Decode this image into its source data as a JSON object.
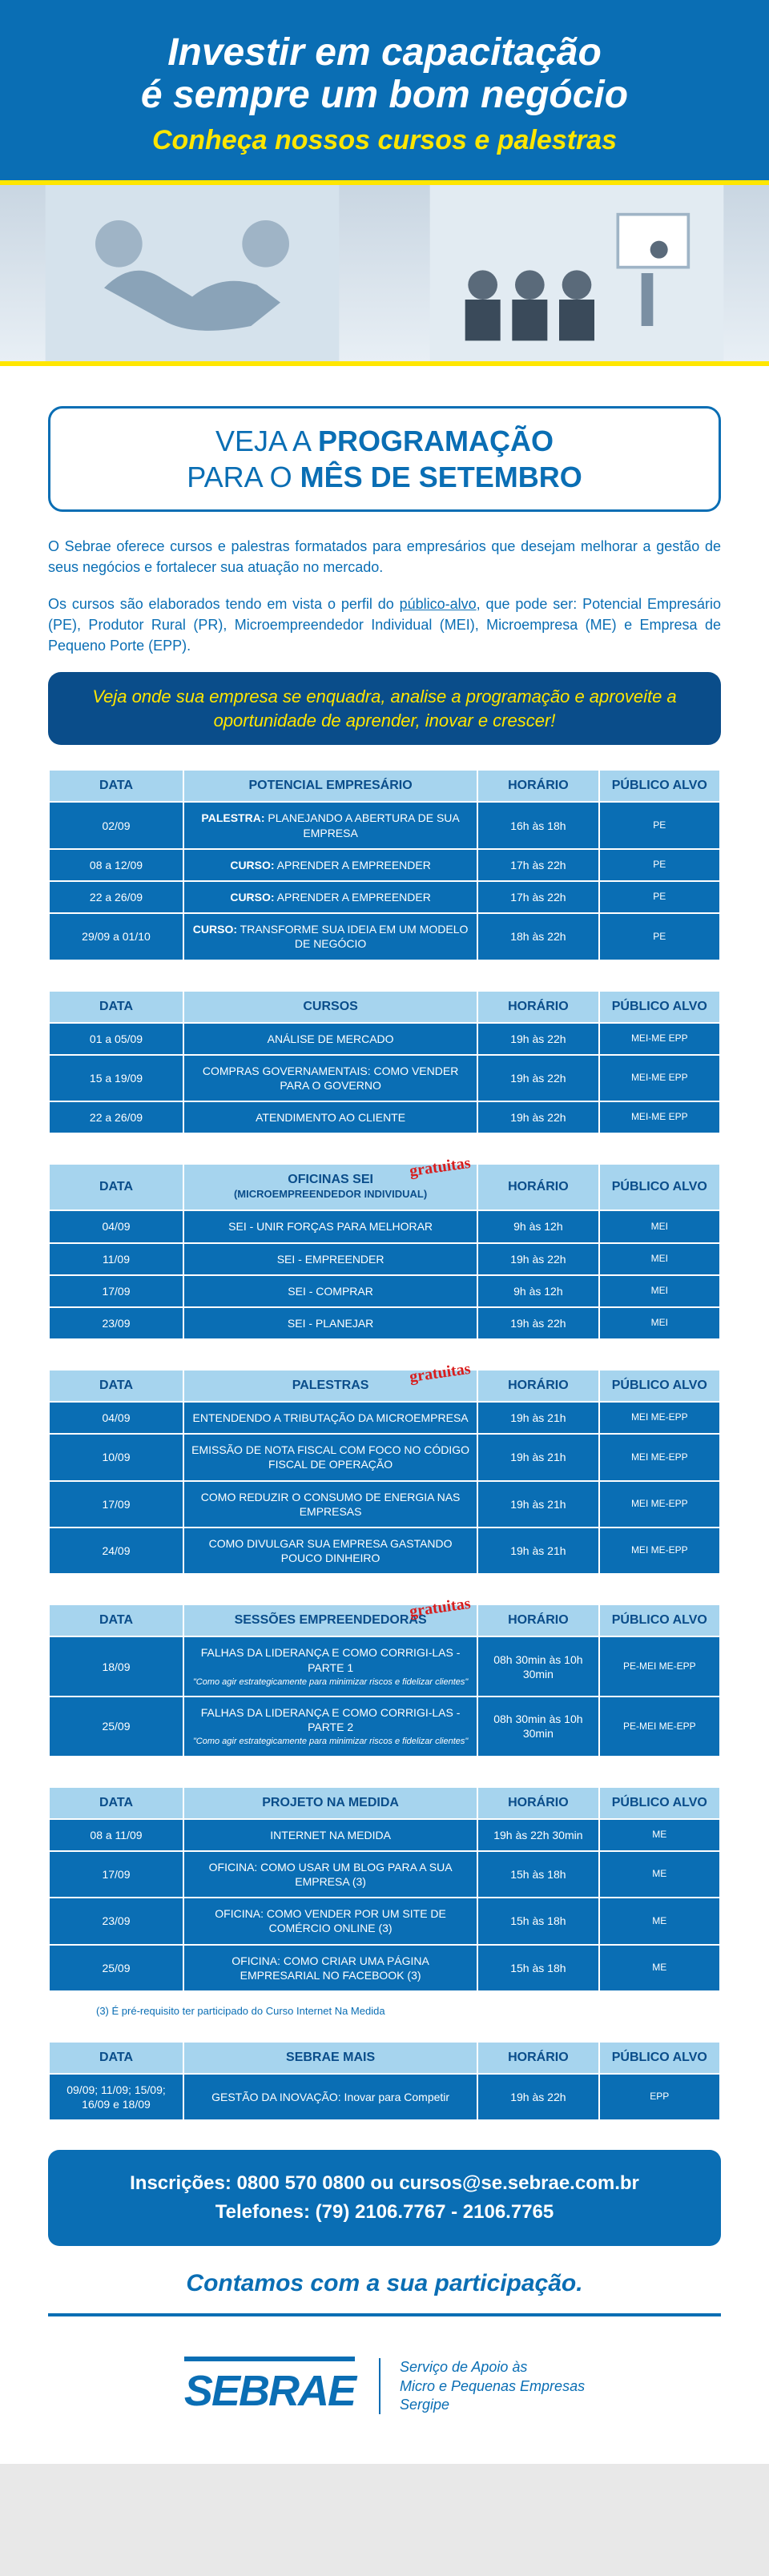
{
  "colors": {
    "primary": "#0a6eb4",
    "primary_dark": "#0a4d8a",
    "accent": "#ffe600",
    "header_bg": "#a6d4ee",
    "row_bg": "#0a6eb4",
    "stamp": "#d81e1e"
  },
  "header": {
    "title_l1": "Investir em capacitação",
    "title_l2": "é sempre um bom negócio",
    "subtitle": "Conheça nossos cursos e palestras"
  },
  "section_title": {
    "l1_thin": "VEJA A ",
    "l1_bold": "PROGRAMAÇÃO",
    "l2_thin": "PARA O ",
    "l2_bold": "MÊS DE SETEMBRO"
  },
  "intro": {
    "p1": "O Sebrae oferece cursos e palestras formatados para empresários que desejam melhorar a gestão de seus negócios e fortalecer sua atuação no mercado.",
    "p2a": "Os cursos são elaborados tendo em vista o perfil do ",
    "p2_underline": "público-alvo",
    "p2b": ", que pode ser: Potencial Empresário (PE), Produtor Rural (PR), Microempreendedor Individual (MEI), Microempresa (ME) e Empresa de Pequeno Porte (EPP)."
  },
  "callout": "Veja onde sua empresa se enquadra, analise a programação e aproveite a oportunidade de aprender, inovar e crescer!",
  "col_headers": {
    "data": "DATA",
    "horario": "HORÁRIO",
    "publico": "PÚBLICO ALVO"
  },
  "gratis_text": "gratuitas",
  "tables": [
    {
      "main_header": "POTENCIAL EMPRESÁRIO",
      "gratis": false,
      "rows": [
        {
          "data": "02/09",
          "desc_prefix": "PALESTRA:",
          "desc": " PLANEJANDO A ABERTURA DE SUA EMPRESA",
          "hora": "16h às 18h",
          "pub": "PE"
        },
        {
          "data": "08 a 12/09",
          "desc_prefix": "CURSO:",
          "desc": " APRENDER A EMPREENDER",
          "hora": "17h às 22h",
          "pub": "PE"
        },
        {
          "data": "22 a 26/09",
          "desc_prefix": "CURSO:",
          "desc": " APRENDER A EMPREENDER",
          "hora": "17h às 22h",
          "pub": "PE"
        },
        {
          "data": "29/09 a 01/10",
          "desc_prefix": "CURSO:",
          "desc": " TRANSFORME SUA IDEIA EM UM MODELO DE NEGÓCIO",
          "hora": "18h às 22h",
          "pub": "PE"
        }
      ]
    },
    {
      "main_header": "CURSOS",
      "gratis": false,
      "rows": [
        {
          "data": "01 a 05/09",
          "desc": "ANÁLISE DE MERCADO",
          "hora": "19h às 22h",
          "pub": "MEI-ME EPP"
        },
        {
          "data": "15 a 19/09",
          "desc": "COMPRAS GOVERNAMENTAIS: COMO VENDER PARA O GOVERNO",
          "hora": "19h às 22h",
          "pub": "MEI-ME EPP"
        },
        {
          "data": "22 a 26/09",
          "desc": "ATENDIMENTO AO CLIENTE",
          "hora": "19h às 22h",
          "pub": "MEI-ME EPP"
        }
      ]
    },
    {
      "main_header": "OFICINAS SEI",
      "main_header_sub": "(MICROEMPREENDEDOR INDIVIDUAL)",
      "gratis": true,
      "rows": [
        {
          "data": "04/09",
          "desc": "SEI - UNIR FORÇAS PARA MELHORAR",
          "hora": "9h às 12h",
          "pub": "MEI"
        },
        {
          "data": "11/09",
          "desc": "SEI - EMPREENDER",
          "hora": "19h às 22h",
          "pub": "MEI"
        },
        {
          "data": "17/09",
          "desc": "SEI - COMPRAR",
          "hora": "9h às 12h",
          "pub": "MEI"
        },
        {
          "data": "23/09",
          "desc": "SEI - PLANEJAR",
          "hora": "19h às 22h",
          "pub": "MEI"
        }
      ]
    },
    {
      "main_header": "PALESTRAS",
      "gratis": true,
      "rows": [
        {
          "data": "04/09",
          "desc": "ENTENDENDO A TRIBUTAÇÃO DA MICROEMPRESA",
          "hora": "19h às 21h",
          "pub": "MEI ME-EPP"
        },
        {
          "data": "10/09",
          "desc": "EMISSÃO DE NOTA FISCAL COM FOCO NO CÓDIGO FISCAL DE OPERAÇÃO",
          "hora": "19h às 21h",
          "pub": "MEI ME-EPP"
        },
        {
          "data": "17/09",
          "desc": "COMO REDUZIR O CONSUMO DE ENERGIA NAS EMPRESAS",
          "hora": "19h às 21h",
          "pub": "MEI ME-EPP"
        },
        {
          "data": "24/09",
          "desc": "COMO DIVULGAR SUA EMPRESA GASTANDO POUCO DINHEIRO",
          "hora": "19h às 21h",
          "pub": "MEI ME-EPP"
        }
      ]
    },
    {
      "main_header": "SESSÕES EMPREENDEDORAS",
      "gratis": true,
      "rows": [
        {
          "data": "18/09",
          "desc": "FALHAS DA LIDERANÇA E COMO CORRIGI-LAS - PARTE 1",
          "desc_sub": "\"Como agir estrategicamente para minimizar riscos e fidelizar clientes\"",
          "hora": "08h 30min às 10h 30min",
          "pub": "PE-MEI ME-EPP"
        },
        {
          "data": "25/09",
          "desc": "FALHAS DA LIDERANÇA E COMO CORRIGI-LAS - PARTE 2",
          "desc_sub": "\"Como agir estrategicamente para minimizar riscos e fidelizar clientes\"",
          "hora": "08h 30min às 10h 30min",
          "pub": "PE-MEI ME-EPP"
        }
      ]
    },
    {
      "main_header": "PROJETO NA MEDIDA",
      "gratis": false,
      "rows": [
        {
          "data": "08 a 11/09",
          "desc": "INTERNET NA MEDIDA",
          "hora": "19h às 22h 30min",
          "pub": "ME"
        },
        {
          "data": "17/09",
          "desc": "OFICINA: COMO USAR UM BLOG PARA A SUA EMPRESA (3)",
          "hora": "15h às 18h",
          "pub": "ME"
        },
        {
          "data": "23/09",
          "desc": "OFICINA: COMO VENDER POR UM SITE DE COMÉRCIO ONLINE (3)",
          "hora": "15h às 18h",
          "pub": "ME"
        },
        {
          "data": "25/09",
          "desc": "OFICINA: COMO CRIAR UMA PÁGINA EMPRESARIAL NO FACEBOOK (3)",
          "hora": "15h às 18h",
          "pub": "ME"
        }
      ],
      "footnote": "(3) É pré-requisito ter participado do Curso Internet Na Medida"
    },
    {
      "main_header": "SEBRAE MAIS",
      "gratis": false,
      "rows": [
        {
          "data": "09/09; 11/09; 15/09; 16/09 e 18/09",
          "desc": "GESTÃO DA INOVAÇÃO: Inovar para Competir",
          "hora": "19h às 22h",
          "pub": "EPP"
        }
      ]
    }
  ],
  "contact": {
    "l1": "Inscrições: 0800 570 0800 ou cursos@se.sebrae.com.br",
    "l2": "Telefones: (79) 2106.7767 - 2106.7765"
  },
  "participate": "Contamos com a sua participação.",
  "footer": {
    "logo": "SEBRAE",
    "text_l1": "Serviço de Apoio às",
    "text_l2": "Micro e Pequenas Empresas",
    "text_l3": "Sergipe"
  }
}
